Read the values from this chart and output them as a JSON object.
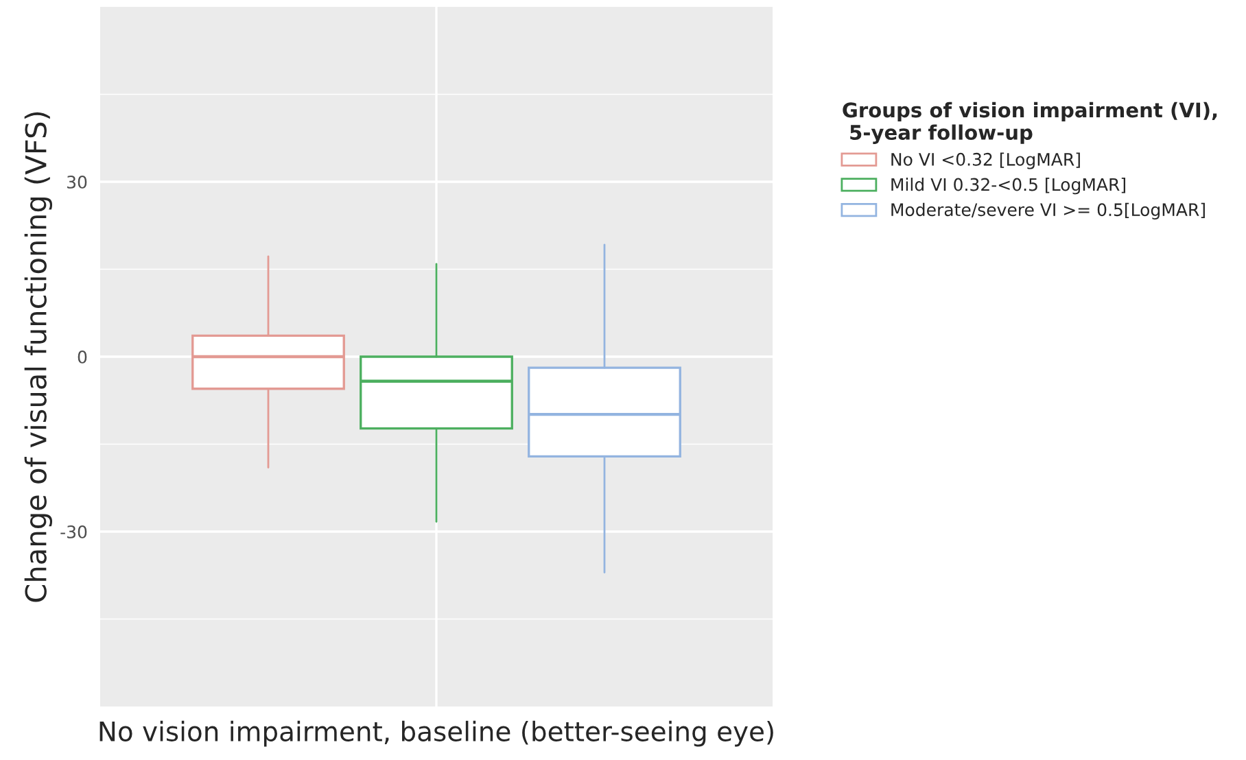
{
  "chart_data": {
    "type": "box",
    "xlabel": "No vision impairment, baseline (better-seeing eye)",
    "ylabel": "Change of visual functioning (VFS)",
    "legend_title": "Groups of vision impairment (VI),\n 5-year follow-up",
    "categories": [
      null
    ],
    "ylim": [
      -60,
      60
    ],
    "yticks": [
      -30,
      0,
      30
    ],
    "grid": true,
    "legend": "right",
    "series": [
      {
        "name": "No VI <0.32 [LogMAR]",
        "color": "#e39a93",
        "boxes": [
          {
            "low": -19,
            "q1": -5.5,
            "median": 0,
            "q3": 3.6,
            "high": 17.2
          }
        ]
      },
      {
        "name": "Mild VI 0.32-<0.5 [LogMAR]",
        "color": "#4caf5f",
        "boxes": [
          {
            "low": -28.3,
            "q1": -12.3,
            "median": -4.2,
            "q3": 0,
            "high": 15.9
          }
        ]
      },
      {
        "name": "Moderate/severe VI >= 0.5[LogMAR]",
        "color": "#93b4e0",
        "boxes": [
          {
            "low": -37,
            "q1": -17.1,
            "median": -9.9,
            "q3": -1.9,
            "high": 19.2
          }
        ]
      }
    ]
  }
}
